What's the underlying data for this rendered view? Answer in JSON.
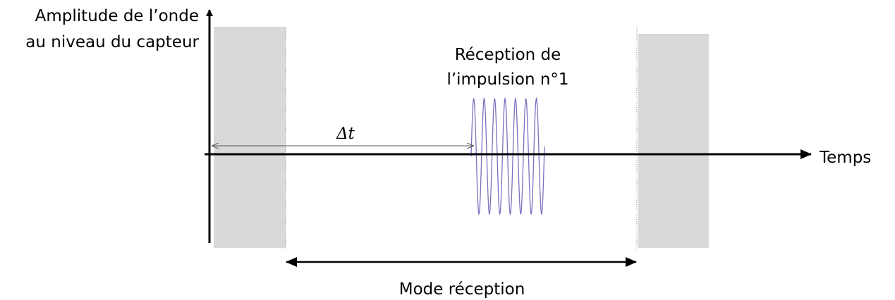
{
  "y_axis_label": [
    "Amplitude de l’onde",
    "au niveau du capteur"
  ],
  "x_axis_label": "Temps",
  "pulse_label": [
    "Réception de",
    "l’impulsion n°1"
  ],
  "delay_label": "Δt",
  "mode_label": "Mode réception"
}
